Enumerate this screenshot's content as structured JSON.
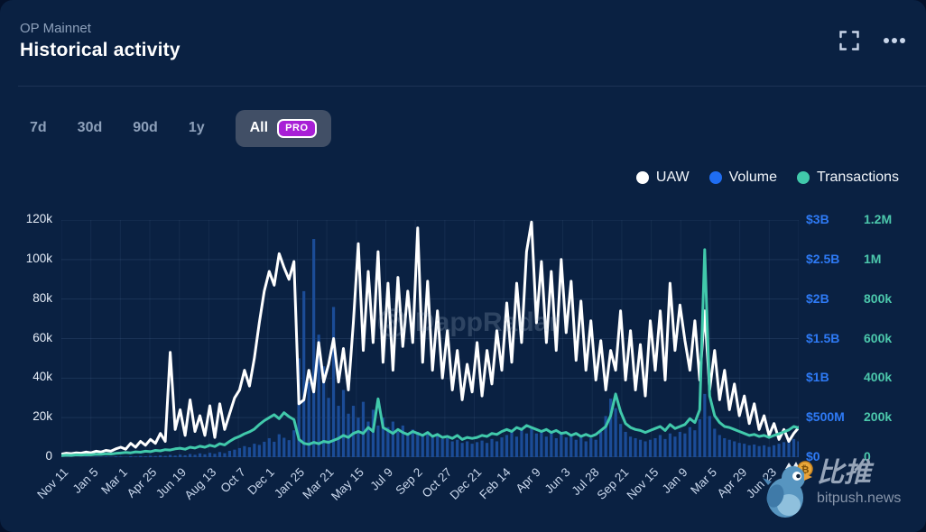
{
  "header": {
    "subtitle": "OP Mainnet",
    "title": "Historical activity"
  },
  "toolbar": {
    "ranges": [
      {
        "label": "7d",
        "active": false
      },
      {
        "label": "30d",
        "active": false
      },
      {
        "label": "90d",
        "active": false
      },
      {
        "label": "1y",
        "active": false
      },
      {
        "label": "All",
        "active": true,
        "badge": "PRO"
      }
    ]
  },
  "legend": {
    "items": [
      {
        "label": "UAW",
        "color": "#ffffff"
      },
      {
        "label": "Volume",
        "color": "#1f6df2"
      },
      {
        "label": "Transactions",
        "color": "#41c9ab"
      }
    ]
  },
  "watermark": {
    "text": "DappRadar"
  },
  "footer": {
    "brand": "比推",
    "domain": "bitpush.news"
  },
  "chart_data": {
    "type": "line+bar",
    "x_ticks": [
      "Nov 11",
      "Jan 5",
      "Mar 1",
      "Apr 25",
      "Jun 19",
      "Aug 13",
      "Oct 7",
      "Dec 1",
      "Jan 25",
      "Mar 21",
      "May 15",
      "Jul 9",
      "Sep 2",
      "Oct 27",
      "Dec 21",
      "Feb 14",
      "Apr 9",
      "Jun 3",
      "Jul 28",
      "Sep 21",
      "Nov 15",
      "Jan 9",
      "Mar 5",
      "Apr 29",
      "Jun 23",
      "Aug 17"
    ],
    "axes": {
      "left": {
        "ticks": [
          "120k",
          "100k",
          "80k",
          "60k",
          "40k",
          "20k",
          "0"
        ],
        "max": 120,
        "unit": "k UAW",
        "color": "#e7eef8"
      },
      "volume": {
        "ticks": [
          "$3B",
          "$2.5B",
          "$2B",
          "$1.5B",
          "$1B",
          "$500M",
          "$0"
        ],
        "max": 3000,
        "unit": "$M",
        "color": "#2e7af5"
      },
      "tx": {
        "ticks": [
          "1.2M",
          "1M",
          "800k",
          "600k",
          "400k",
          "200k",
          "0"
        ],
        "max": 1200,
        "unit": "k transactions",
        "color": "#4cc8ac"
      }
    },
    "grid": true,
    "legend_position": "top-right",
    "series": [
      {
        "name": "Volume",
        "type": "bar",
        "axis": "volume",
        "color": "#1b4c97",
        "unit": "$M",
        "values": [
          2,
          3,
          2,
          4,
          3,
          5,
          4,
          6,
          5,
          8,
          6,
          10,
          8,
          6,
          12,
          9,
          15,
          11,
          18,
          14,
          22,
          16,
          28,
          20,
          32,
          24,
          40,
          30,
          48,
          36,
          55,
          42,
          65,
          50,
          80,
          95,
          115,
          140,
          125,
          170,
          155,
          195,
          240,
          195,
          290,
          245,
          215,
          340,
          1250,
          2100,
          950,
          2760,
          1550,
          1150,
          750,
          1900,
          650,
          850,
          550,
          650,
          500,
          700,
          450,
          600,
          400,
          500,
          380,
          450,
          320,
          400,
          300,
          350,
          320,
          280,
          300,
          250,
          280,
          230,
          240,
          200,
          220,
          180,
          200,
          170,
          190,
          210,
          180,
          230,
          200,
          250,
          280,
          320,
          260,
          350,
          300,
          380,
          300,
          340,
          260,
          320,
          240,
          300,
          250,
          280,
          220,
          260,
          200,
          240,
          220,
          320,
          520,
          740,
          620,
          420,
          320,
          260,
          240,
          220,
          200,
          220,
          240,
          280,
          230,
          300,
          260,
          320,
          300,
          380,
          340,
          480,
          800,
          520,
          360,
          280,
          240,
          220,
          200,
          180,
          170,
          150,
          160,
          140,
          150,
          130,
          150,
          170,
          190,
          210,
          230,
          200
        ]
      },
      {
        "name": "UAW",
        "type": "line",
        "axis": "left",
        "color": "#ffffff",
        "unit": "k",
        "values": [
          1.5,
          2,
          1.8,
          2.2,
          2,
          2.6,
          2.2,
          3,
          2.6,
          3.4,
          3,
          4.2,
          5,
          4,
          7,
          5,
          8,
          6,
          9,
          7,
          12,
          8,
          53,
          14,
          24,
          11,
          29,
          13,
          21,
          11,
          26,
          10,
          27,
          14,
          22,
          30,
          34,
          44,
          36,
          50,
          68,
          84,
          94,
          87,
          103,
          96,
          90,
          99,
          27,
          29,
          44,
          33,
          58,
          38,
          47,
          60,
          38,
          55,
          34,
          68,
          108,
          54,
          94,
          58,
          104,
          48,
          88,
          44,
          91,
          56,
          84,
          58,
          116,
          48,
          89,
          44,
          74,
          40,
          64,
          34,
          54,
          29,
          47,
          33,
          58,
          31,
          54,
          37,
          64,
          44,
          78,
          48,
          88,
          58,
          104,
          119,
          68,
          99,
          58,
          94,
          54,
          100,
          63,
          89,
          49,
          79,
          44,
          69,
          39,
          59,
          34,
          54,
          44,
          74,
          39,
          64,
          34,
          57,
          31,
          69,
          44,
          74,
          39,
          88,
          54,
          77,
          59,
          44,
          69,
          39,
          74,
          34,
          54,
          29,
          44,
          24,
          37,
          21,
          31,
          17,
          27,
          14,
          21,
          11,
          17,
          9,
          14,
          8,
          12,
          15
        ]
      },
      {
        "name": "Transactions",
        "type": "line",
        "axis": "tx",
        "color": "#41c9ab",
        "unit": "k",
        "values": [
          8,
          10,
          9,
          12,
          11,
          13,
          12,
          15,
          14,
          17,
          16,
          19,
          21,
          24,
          22,
          27,
          25,
          30,
          28,
          34,
          32,
          38,
          36,
          42,
          45,
          40,
          50,
          46,
          55,
          50,
          60,
          54,
          68,
          62,
          80,
          95,
          105,
          118,
          128,
          142,
          165,
          185,
          200,
          215,
          195,
          225,
          205,
          190,
          90,
          70,
          65,
          75,
          68,
          80,
          75,
          85,
          95,
          110,
          100,
          120,
          130,
          120,
          150,
          130,
          295,
          150,
          135,
          120,
          140,
          125,
          115,
          130,
          120,
          110,
          125,
          105,
          115,
          100,
          105,
          95,
          110,
          90,
          100,
          95,
          100,
          110,
          105,
          120,
          115,
          130,
          140,
          130,
          150,
          140,
          160,
          150,
          140,
          130,
          140,
          125,
          135,
          120,
          125,
          110,
          120,
          105,
          115,
          105,
          115,
          135,
          155,
          210,
          320,
          230,
          170,
          150,
          140,
          135,
          125,
          135,
          145,
          155,
          135,
          165,
          145,
          155,
          165,
          195,
          175,
          240,
          1050,
          310,
          210,
          175,
          155,
          150,
          140,
          130,
          120,
          110,
          115,
          105,
          110,
          100,
          110,
          118,
          128,
          138,
          155,
          148
        ]
      }
    ]
  }
}
